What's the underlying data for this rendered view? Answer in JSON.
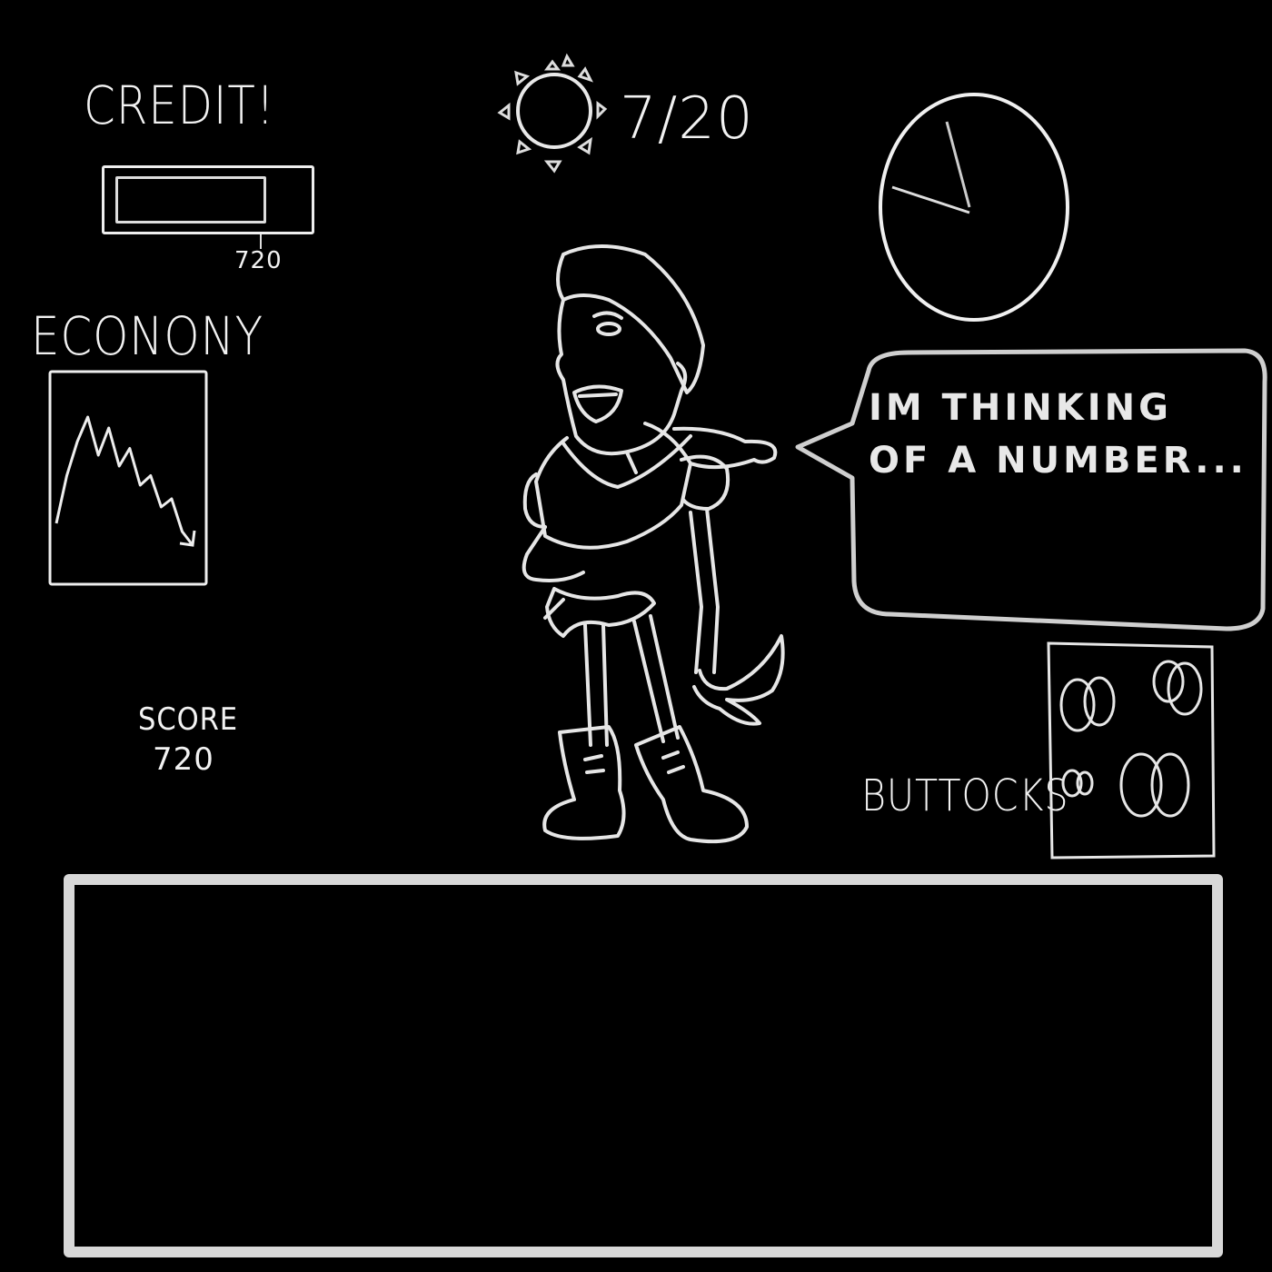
{
  "hud": {
    "credit": {
      "title": "CREDIT!",
      "value": "720",
      "fill_fraction": 0.72
    },
    "economy": {
      "title": "ECONONY",
      "trend": [
        20,
        55,
        80,
        98,
        70,
        90,
        62,
        75,
        48,
        55,
        32,
        38,
        14,
        4
      ]
    },
    "score": {
      "label": "SCORE",
      "value": "720"
    },
    "day": {
      "counter": "7/20",
      "icon": "sun-icon"
    },
    "clock": {
      "icon": "clock-icon"
    }
  },
  "character": {
    "icon": "character-sprite",
    "speech": "IM THINKING OF A NUMBER..."
  },
  "buttocks": {
    "label": "BUTTOCKS",
    "icon": "buttocks-icon"
  },
  "dialog": {
    "text": ""
  },
  "colors": {
    "background": "#000000",
    "line": "#f0f0f0",
    "dialog_border": "#d8d8d8"
  }
}
